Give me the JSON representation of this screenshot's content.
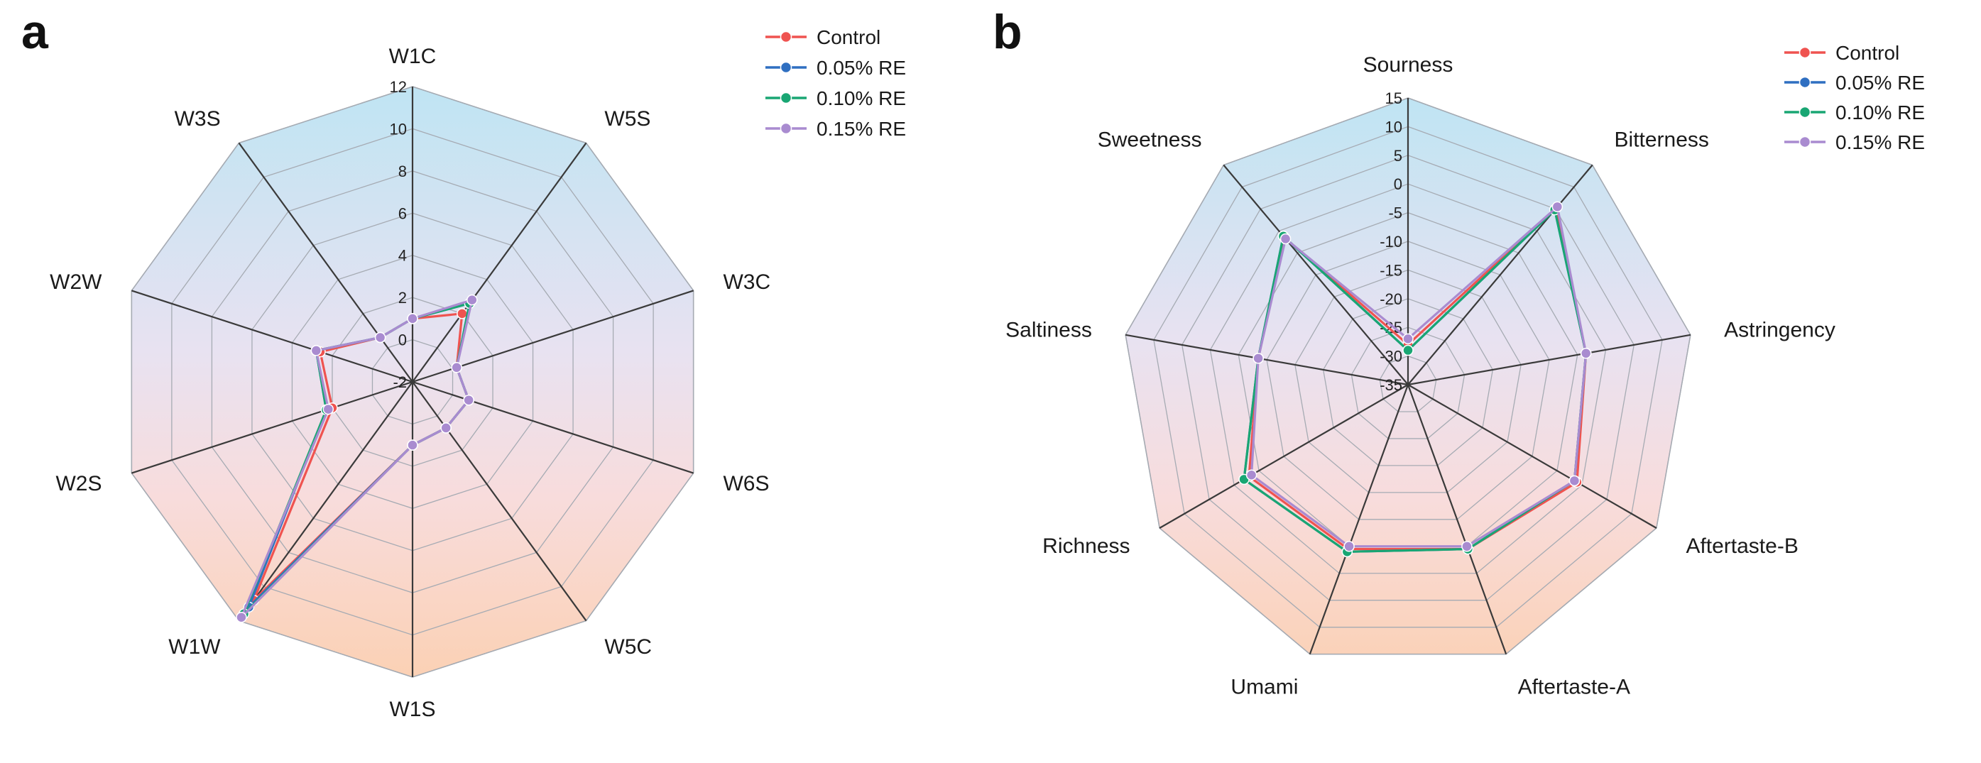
{
  "chart_data": [
    {
      "panel_label": "a",
      "type": "radar",
      "axes": [
        "W1C",
        "W5S",
        "W3C",
        "W6S",
        "W5C",
        "W1S",
        "W1W",
        "W2S",
        "W2W",
        "W3S"
      ],
      "rlim": [
        -2,
        12
      ],
      "ticks": [
        -2,
        0,
        2,
        4,
        6,
        8,
        10,
        12
      ],
      "tick_labels": [
        "-2",
        "0",
        "2",
        "4",
        "6",
        "8",
        "10",
        "12"
      ],
      "legend_position": "top-right",
      "series": [
        {
          "name": "Control",
          "color": "#ef5350",
          "values": [
            1.0,
            2.0,
            0.2,
            0.8,
            0.7,
            1.0,
            10.8,
            2.0,
            2.6,
            0.6
          ]
        },
        {
          "name": "0.05% RE",
          "color": "#2f6fc1",
          "values": [
            1.0,
            2.6,
            0.2,
            0.8,
            0.7,
            1.0,
            11.2,
            2.3,
            2.8,
            0.6
          ]
        },
        {
          "name": "0.10% RE",
          "color": "#19a673",
          "values": [
            1.0,
            2.6,
            0.2,
            0.8,
            0.7,
            1.0,
            11.6,
            2.3,
            2.8,
            0.6
          ]
        },
        {
          "name": "0.15% RE",
          "color": "#a98bd0",
          "values": [
            1.0,
            2.8,
            0.2,
            0.8,
            0.7,
            1.0,
            11.8,
            2.2,
            2.8,
            0.6
          ]
        }
      ]
    },
    {
      "panel_label": "b",
      "type": "radar",
      "axes": [
        "Sourness",
        "Bitterness",
        "Astringency",
        "Aftertaste-B",
        "Aftertaste-A",
        "Umami",
        "Richness",
        "Saltiness",
        "Sweetness"
      ],
      "rlim": [
        -35,
        15
      ],
      "ticks": [
        -35,
        -30,
        -25,
        -20,
        -15,
        -10,
        -5,
        0,
        5,
        10,
        15
      ],
      "tick_labels": [
        "-35",
        "-30",
        "-25",
        "-20",
        "-15",
        "-10",
        "-5",
        "0",
        "5",
        "10",
        "15"
      ],
      "legend_position": "top-right",
      "series": [
        {
          "name": "Control",
          "color": "#ef5350",
          "values": [
            -28,
            5.0,
            -3.5,
            -1.0,
            -4.5,
            -4.5,
            -3.0,
            -8.5,
            -1.5
          ]
        },
        {
          "name": "0.05% RE",
          "color": "#2f6fc1",
          "values": [
            -29,
            4.8,
            -3.5,
            -1.5,
            -4.5,
            -4.0,
            -2.0,
            -8.5,
            -1.2
          ]
        },
        {
          "name": "0.10% RE",
          "color": "#19a673",
          "values": [
            -29,
            4.8,
            -3.5,
            -1.5,
            -4.5,
            -4.0,
            -2.0,
            -8.5,
            -1.2
          ]
        },
        {
          "name": "0.15% RE",
          "color": "#a98bd0",
          "values": [
            -27,
            5.5,
            -3.5,
            -1.5,
            -5.0,
            -5.0,
            -3.5,
            -8.5,
            -1.8
          ]
        }
      ]
    }
  ]
}
